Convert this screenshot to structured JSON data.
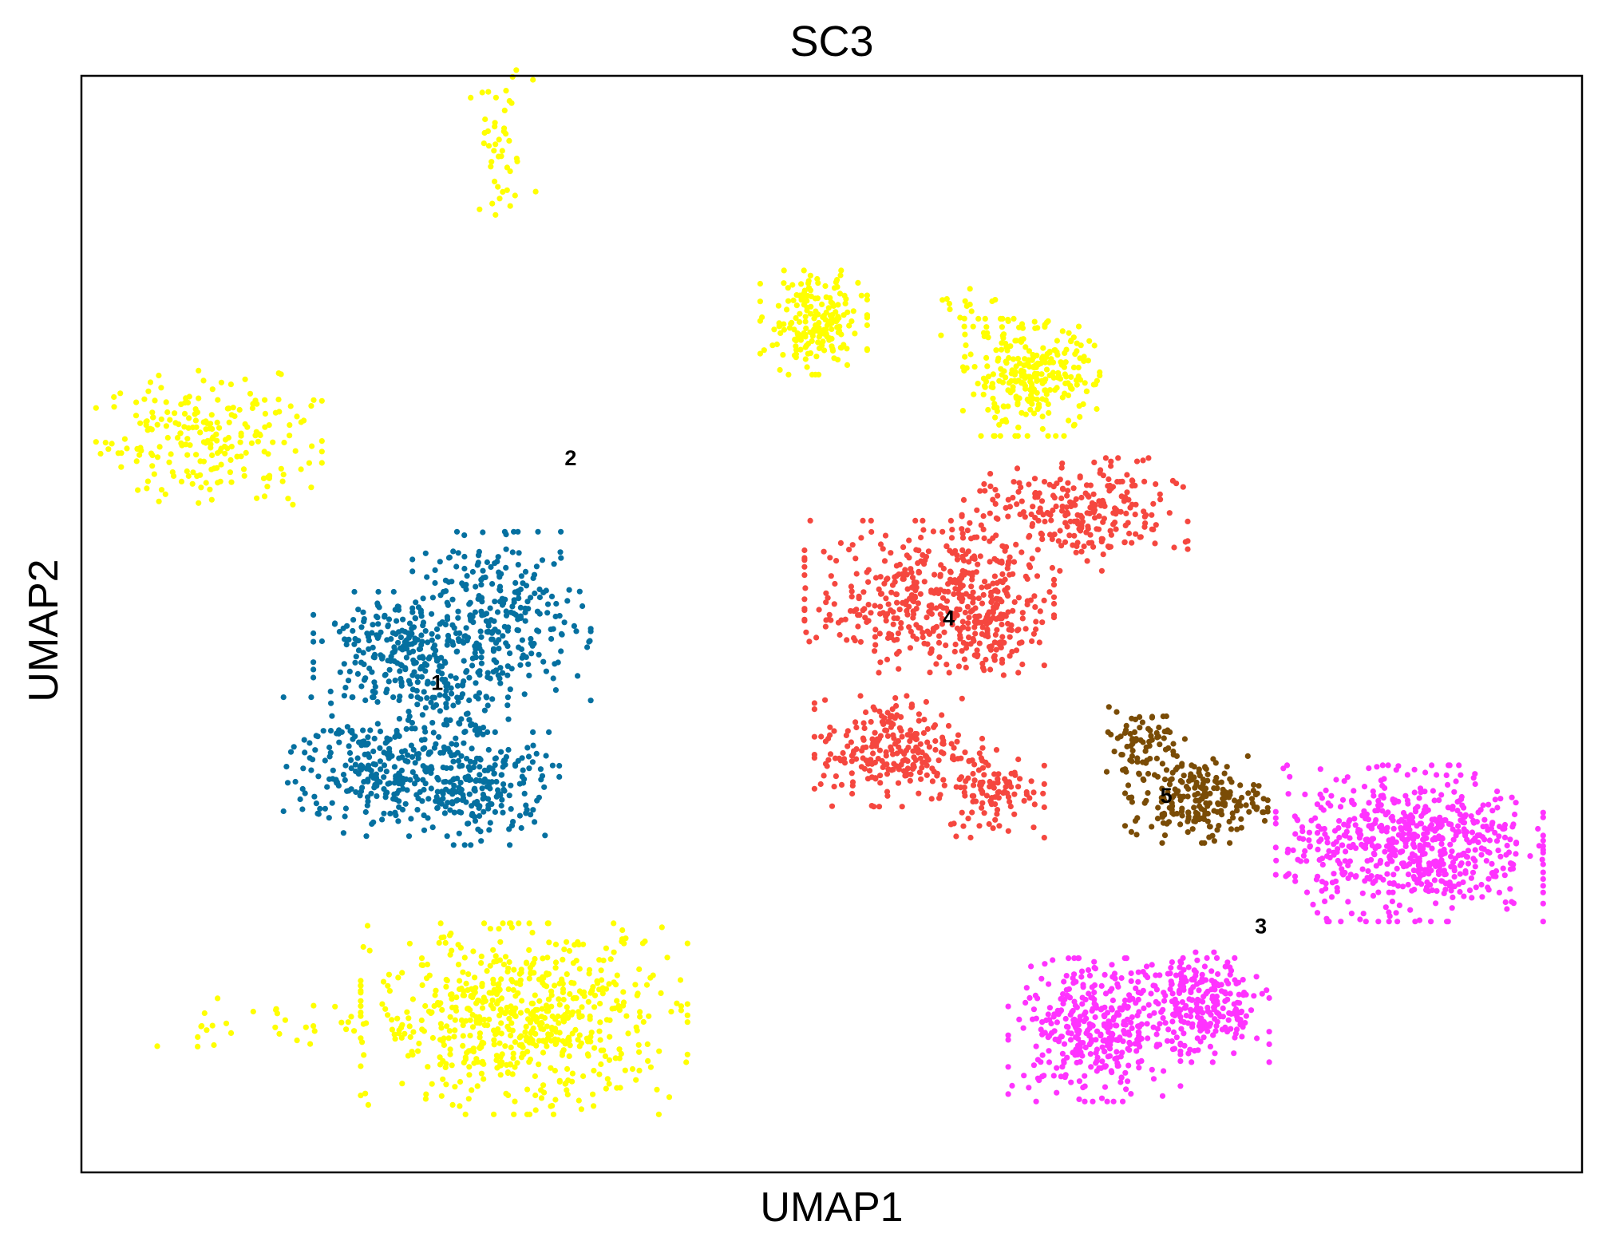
{
  "chart_data": {
    "type": "scatter",
    "title": "SC3",
    "xlabel": "UMAP1",
    "ylabel": "UMAP2",
    "xlim": [
      0,
      100
    ],
    "ylim": [
      0,
      100
    ],
    "grid": false,
    "legend": "on data",
    "ticks_shown": false,
    "point_colors": {
      "1": "#0570a0",
      "2": "#ffff00",
      "3": "#ff33ff",
      "4": "#f5473f",
      "5": "#7a4c06"
    },
    "cluster_labels": [
      {
        "text": "1",
        "x": 23.7,
        "y": 44.5
      },
      {
        "text": "2",
        "x": 32.6,
        "y": 65.0
      },
      {
        "text": "3",
        "x": 78.6,
        "y": 22.3
      },
      {
        "text": "4",
        "x": 57.8,
        "y": 50.4
      },
      {
        "text": "5",
        "x": 72.3,
        "y": 34.2
      }
    ],
    "groups": [
      {
        "cluster": "2",
        "cx": 27.9,
        "cy": 93.0,
        "sx": 1.2,
        "sy": 3.8,
        "n": 45
      },
      {
        "cluster": "2",
        "cx": 8.5,
        "cy": 67.0,
        "sx": 3.8,
        "sy": 3.2,
        "n": 220
      },
      {
        "cluster": "2",
        "cx": 48.8,
        "cy": 77.5,
        "sx": 1.8,
        "sy": 2.4,
        "n": 200
      },
      {
        "cluster": "2",
        "cx": 63.3,
        "cy": 72.5,
        "sx": 2.3,
        "sy": 2.7,
        "n": 280
      },
      {
        "cluster": "2",
        "cx": 59.3,
        "cy": 78.0,
        "sx": 1.2,
        "sy": 1.3,
        "n": 20
      },
      {
        "cluster": "2",
        "cx": 29.5,
        "cy": 14.0,
        "sx": 5.5,
        "sy": 4.4,
        "n": 650
      },
      {
        "cluster": "2",
        "cx": 12.5,
        "cy": 13.5,
        "sx": 5.0,
        "sy": 1.2,
        "n": 35
      },
      {
        "cluster": "1",
        "cx": 28.0,
        "cy": 50.5,
        "sx": 3.0,
        "sy": 4.0,
        "n": 280
      },
      {
        "cluster": "1",
        "cx": 21.0,
        "cy": 48.0,
        "sx": 2.8,
        "sy": 2.5,
        "n": 220
      },
      {
        "cluster": "1",
        "cx": 20.0,
        "cy": 37.0,
        "sx": 3.3,
        "sy": 3.2,
        "n": 280
      },
      {
        "cluster": "1",
        "cx": 26.5,
        "cy": 35.0,
        "sx": 2.7,
        "sy": 2.6,
        "n": 200
      },
      {
        "cluster": "1",
        "cx": 24.5,
        "cy": 42.5,
        "sx": 2.0,
        "sy": 2.0,
        "n": 60
      },
      {
        "cluster": "4",
        "cx": 56.5,
        "cy": 52.5,
        "sx": 4.2,
        "sy": 3.5,
        "n": 420
      },
      {
        "cluster": "4",
        "cx": 60.8,
        "cy": 50.0,
        "sx": 1.7,
        "sy": 2.4,
        "n": 100
      },
      {
        "cluster": "4",
        "cx": 66.2,
        "cy": 60.0,
        "sx": 3.8,
        "sy": 2.6,
        "n": 260
      },
      {
        "cluster": "4",
        "cx": 54.0,
        "cy": 38.5,
        "sx": 2.6,
        "sy": 2.6,
        "n": 240
      },
      {
        "cluster": "4",
        "cx": 60.8,
        "cy": 35.0,
        "sx": 1.7,
        "sy": 2.3,
        "n": 110
      },
      {
        "cluster": "5",
        "cx": 70.5,
        "cy": 39.5,
        "sx": 1.6,
        "sy": 1.5,
        "n": 70
      },
      {
        "cluster": "5",
        "cx": 74.3,
        "cy": 34.0,
        "sx": 2.4,
        "sy": 2.0,
        "n": 220
      },
      {
        "cluster": "3",
        "cx": 88.5,
        "cy": 30.0,
        "sx": 4.5,
        "sy": 3.6,
        "n": 650
      },
      {
        "cluster": "3",
        "cx": 67.5,
        "cy": 13.0,
        "sx": 2.9,
        "sy": 3.3,
        "n": 360
      },
      {
        "cluster": "3",
        "cx": 74.8,
        "cy": 14.8,
        "sx": 2.2,
        "sy": 2.4,
        "n": 220
      },
      {
        "cluster": "3",
        "cx": 74.0,
        "cy": 17.5,
        "sx": 1.5,
        "sy": 1.3,
        "n": 40
      }
    ]
  }
}
